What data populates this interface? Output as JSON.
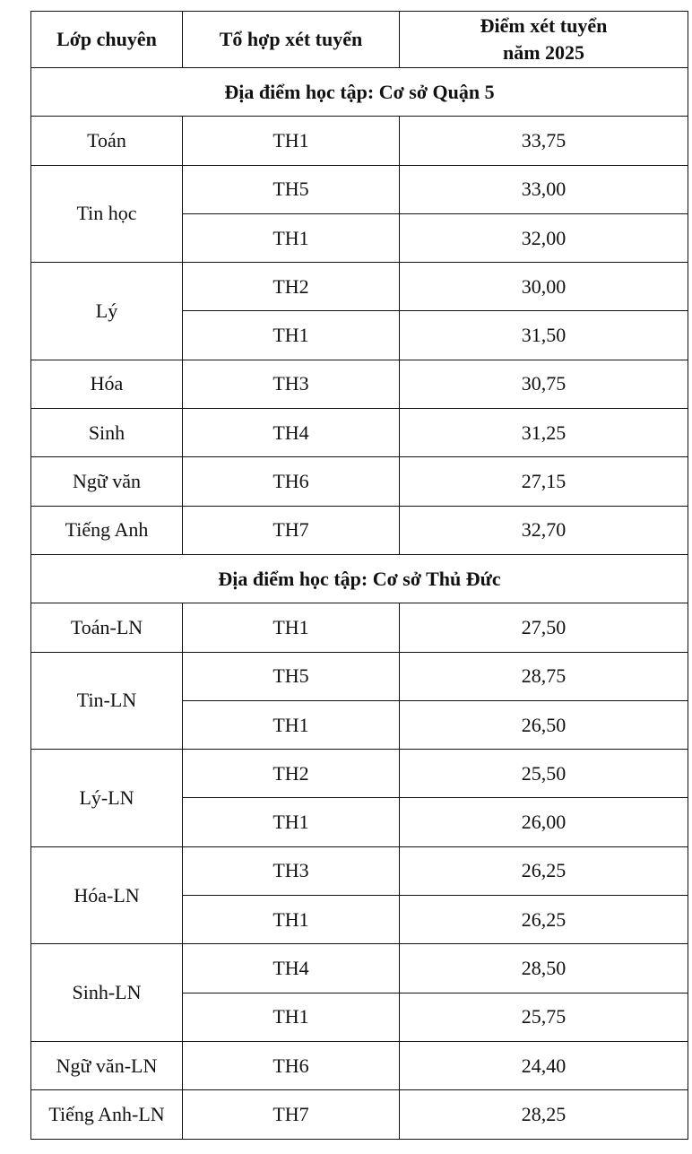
{
  "headers": [
    "Lớp chuyên",
    "Tổ hợp xét tuyển",
    "Điểm xét tuyển năm 2025"
  ],
  "header_lines": {
    "score_line1": "Điểm xét tuyển",
    "score_line2": "năm 2025"
  },
  "sections": [
    {
      "title": "Địa điểm học tập: Cơ sở Quận 5",
      "groups": [
        {
          "class": "Toán",
          "rows": [
            {
              "combo": "TH1",
              "score": "33,75"
            }
          ]
        },
        {
          "class": "Tin học",
          "rows": [
            {
              "combo": "TH5",
              "score": "33,00"
            },
            {
              "combo": "TH1",
              "score": "32,00"
            }
          ]
        },
        {
          "class": "Lý",
          "rows": [
            {
              "combo": "TH2",
              "score": "30,00"
            },
            {
              "combo": "TH1",
              "score": "31,50"
            }
          ]
        },
        {
          "class": "Hóa",
          "rows": [
            {
              "combo": "TH3",
              "score": "30,75"
            }
          ]
        },
        {
          "class": "Sinh",
          "rows": [
            {
              "combo": "TH4",
              "score": "31,25"
            }
          ]
        },
        {
          "class": "Ngữ văn",
          "rows": [
            {
              "combo": "TH6",
              "score": "27,15"
            }
          ]
        },
        {
          "class": "Tiếng Anh",
          "rows": [
            {
              "combo": "TH7",
              "score": "32,70"
            }
          ]
        }
      ]
    },
    {
      "title": "Địa điểm học tập: Cơ sở Thủ Đức",
      "groups": [
        {
          "class": "Toán-LN",
          "rows": [
            {
              "combo": "TH1",
              "score": "27,50"
            }
          ]
        },
        {
          "class": "Tin-LN",
          "rows": [
            {
              "combo": "TH5",
              "score": "28,75"
            },
            {
              "combo": "TH1",
              "score": "26,50"
            }
          ]
        },
        {
          "class": "Lý-LN",
          "rows": [
            {
              "combo": "TH2",
              "score": "25,50"
            },
            {
              "combo": "TH1",
              "score": "26,00"
            }
          ]
        },
        {
          "class": "Hóa-LN",
          "rows": [
            {
              "combo": "TH3",
              "score": "26,25"
            },
            {
              "combo": "TH1",
              "score": "26,25"
            }
          ]
        },
        {
          "class": "Sinh-LN",
          "rows": [
            {
              "combo": "TH4",
              "score": "28,50"
            },
            {
              "combo": "TH1",
              "score": "25,75"
            }
          ]
        },
        {
          "class": "Ngữ văn-LN",
          "rows": [
            {
              "combo": "TH6",
              "score": "24,40"
            }
          ]
        },
        {
          "class": "Tiếng Anh-LN",
          "rows": [
            {
              "combo": "TH7",
              "score": "28,25"
            }
          ]
        }
      ]
    }
  ]
}
